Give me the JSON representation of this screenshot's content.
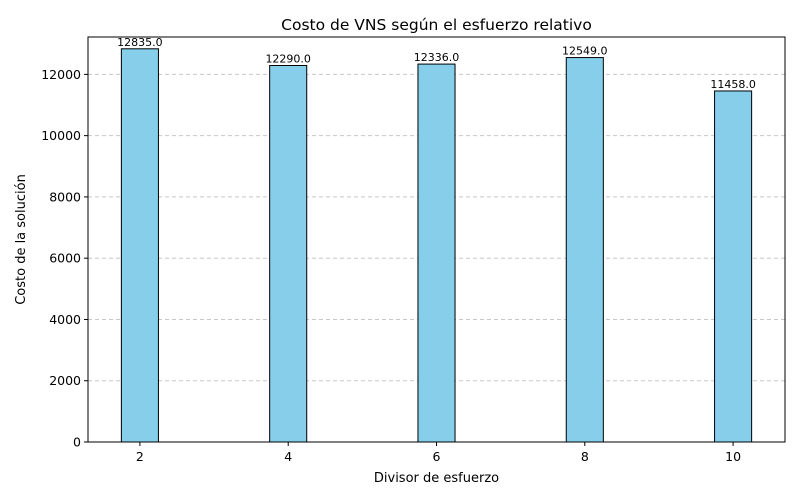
{
  "chart_data": {
    "type": "bar",
    "title": "Costo de VNS según el esfuerzo relativo",
    "xlabel": "Divisor de esfuerzo",
    "ylabel": "Costo de la solución",
    "categories": [
      "2",
      "4",
      "6",
      "8",
      "10"
    ],
    "x": [
      2,
      4,
      6,
      8,
      10
    ],
    "values": [
      12835.0,
      12290.0,
      12336.0,
      12549.0,
      11458.0
    ],
    "data_labels": [
      "12835.0",
      "12290.0",
      "12336.0",
      "12549.0",
      "11458.0"
    ],
    "xlim": [
      1.3,
      10.7
    ],
    "ylim": [
      0,
      13220
    ],
    "yticks": [
      0,
      2000,
      4000,
      6000,
      8000,
      10000,
      12000
    ],
    "ytick_labels": [
      "0",
      "2000",
      "4000",
      "6000",
      "8000",
      "10000",
      "12000"
    ],
    "grid": {
      "y": true,
      "x": false,
      "style": "dashed"
    },
    "colors": {
      "bar_fill": "#87ceeb",
      "bar_edge": "#000000",
      "grid": "#c8c8c8"
    }
  }
}
